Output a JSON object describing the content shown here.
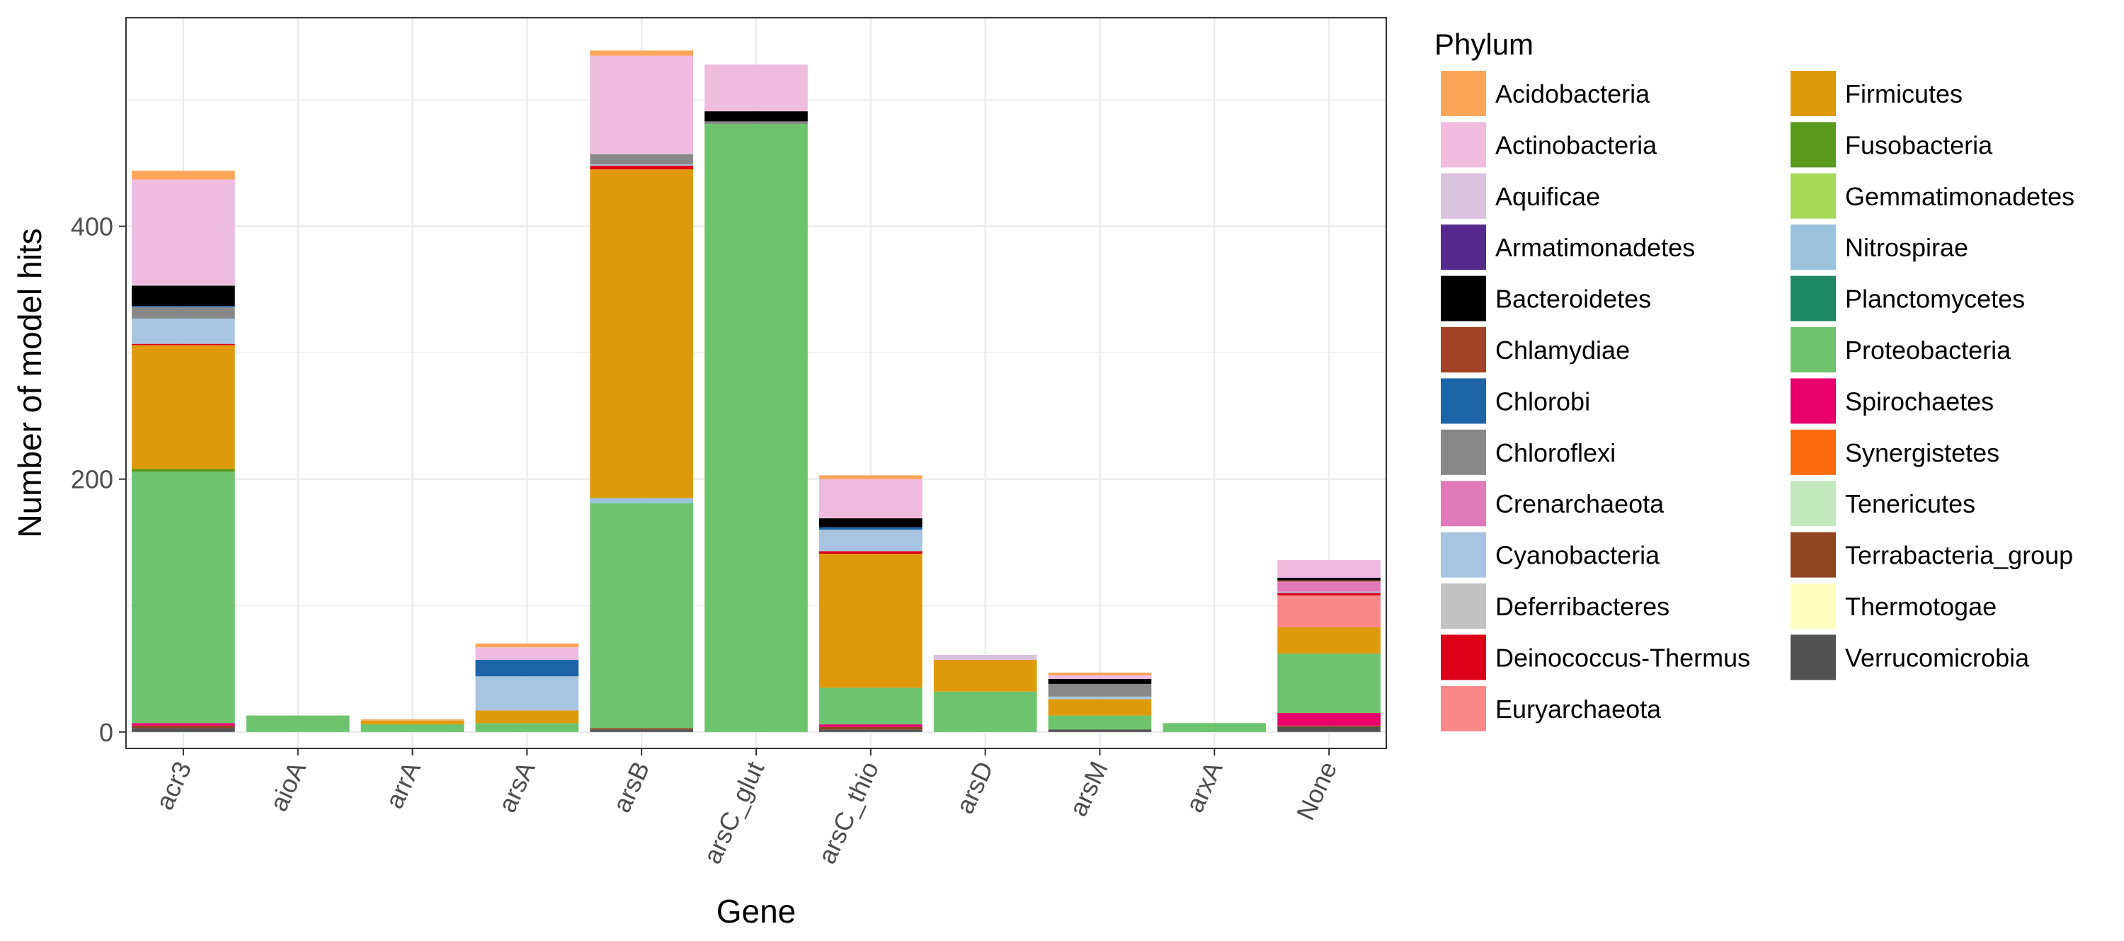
{
  "chart_data": {
    "type": "bar",
    "stacked": true,
    "xlabel": "Gene",
    "ylabel": "Number of model hits",
    "ylim": [
      -13,
      565
    ],
    "y_ticks": [
      0,
      200,
      400
    ],
    "grid": true,
    "legend_title": "Phylum",
    "legend_position": "right",
    "categories": [
      "acr3",
      "aioA",
      "arrA",
      "arsA",
      "arsB",
      "arsC_glut",
      "arsC_thio",
      "arsD",
      "arsM",
      "arxA",
      "None"
    ],
    "series": [
      {
        "name": "Acidobacteria",
        "color": "#fda65a",
        "values": [
          7,
          0,
          1,
          3,
          4,
          0,
          3,
          0,
          2,
          0,
          0
        ]
      },
      {
        "name": "Actinobacteria",
        "color": "#efbbdf",
        "values": [
          83,
          0,
          0,
          10,
          77,
          37,
          31,
          0,
          3,
          0,
          14
        ]
      },
      {
        "name": "Aquificae",
        "color": "#d8c2de",
        "values": [
          1,
          0,
          0,
          0,
          1,
          0,
          0,
          4,
          0,
          0,
          0
        ]
      },
      {
        "name": "Armatimonadetes",
        "color": "#552a8c",
        "values": [
          0,
          0,
          0,
          0,
          0,
          0,
          0,
          0,
          0,
          0,
          0
        ]
      },
      {
        "name": "Bacteroidetes",
        "color": "#000000",
        "values": [
          16,
          0,
          0,
          0,
          0,
          8,
          7,
          0,
          4,
          0,
          2
        ]
      },
      {
        "name": "Chlamydiae",
        "color": "#a14326",
        "values": [
          0,
          0,
          0,
          0,
          0,
          0,
          0,
          0,
          0,
          0,
          1
        ]
      },
      {
        "name": "Chlorobi",
        "color": "#1d65a7",
        "values": [
          1,
          0,
          0,
          13,
          0,
          0,
          2,
          0,
          0,
          0,
          0
        ]
      },
      {
        "name": "Chloroflexi",
        "color": "#888888",
        "values": [
          9,
          0,
          0,
          0,
          8,
          2,
          0,
          0,
          10,
          0,
          0
        ]
      },
      {
        "name": "Crenarchaeota",
        "color": "#e07ab8",
        "values": [
          0,
          0,
          0,
          0,
          0,
          0,
          0,
          0,
          0,
          0,
          8
        ]
      },
      {
        "name": "Cyanobacteria",
        "color": "#a9c4e1",
        "values": [
          20,
          0,
          0,
          27,
          1,
          0,
          17,
          0,
          2,
          0,
          1
        ]
      },
      {
        "name": "Deferribacteres",
        "color": "#c2c2c2",
        "values": [
          0,
          0,
          0,
          0,
          0,
          0,
          0,
          0,
          0,
          0,
          0
        ]
      },
      {
        "name": "Deinococcus-Thermus",
        "color": "#dc0019",
        "values": [
          1,
          0,
          0,
          0,
          3,
          0,
          2,
          0,
          0,
          0,
          2
        ]
      },
      {
        "name": "Euryarchaeota",
        "color": "#fa888a",
        "values": [
          0,
          0,
          0,
          0,
          0,
          0,
          0,
          0,
          0,
          0,
          25
        ]
      },
      {
        "name": "Firmicutes",
        "color": "#df9a0b",
        "values": [
          98,
          0,
          3,
          10,
          260,
          0,
          106,
          25,
          13,
          0,
          21
        ]
      },
      {
        "name": "Fusobacteria",
        "color": "#5a9a1d",
        "values": [
          2,
          0,
          0,
          0,
          0,
          0,
          0,
          0,
          0,
          0,
          0
        ]
      },
      {
        "name": "Gemmatimonadetes",
        "color": "#a7d857",
        "values": [
          0,
          0,
          0,
          0,
          0,
          0,
          0,
          0,
          0,
          0,
          0
        ]
      },
      {
        "name": "Nitrospirae",
        "color": "#9cc3de",
        "values": [
          0,
          0,
          0,
          0,
          4,
          0,
          0,
          0,
          0,
          0,
          0
        ]
      },
      {
        "name": "Planctomycetes",
        "color": "#1e8a66",
        "values": [
          0,
          0,
          0,
          0,
          0,
          0,
          0,
          0,
          0,
          0,
          0
        ]
      },
      {
        "name": "Proteobacteria",
        "color": "#6ec36f",
        "values": [
          199,
          13,
          6,
          7,
          178,
          481,
          29,
          32,
          11,
          7,
          47
        ]
      },
      {
        "name": "Spirochaetes",
        "color": "#e8006d",
        "values": [
          2,
          0,
          0,
          0,
          0,
          0,
          2,
          0,
          0,
          0,
          10
        ]
      },
      {
        "name": "Synergistetes",
        "color": "#fb6a0b",
        "values": [
          0,
          0,
          0,
          0,
          0,
          0,
          0,
          0,
          0,
          0,
          0
        ]
      },
      {
        "name": "Tenericutes",
        "color": "#c3e8bd",
        "values": [
          0,
          0,
          0,
          0,
          0,
          0,
          0,
          0,
          0,
          0,
          0
        ]
      },
      {
        "name": "Terrabacteria_group",
        "color": "#8f4422",
        "values": [
          2,
          0,
          0,
          0,
          1,
          0,
          2,
          0,
          0,
          0,
          1
        ]
      },
      {
        "name": "Thermotogae",
        "color": "#fefec0",
        "values": [
          0,
          0,
          0,
          0,
          0,
          0,
          0,
          0,
          0,
          0,
          0
        ]
      },
      {
        "name": "Verrucomicrobia",
        "color": "#525252",
        "values": [
          3,
          0,
          0,
          0,
          2,
          0,
          2,
          0,
          2,
          0,
          4
        ]
      }
    ]
  }
}
